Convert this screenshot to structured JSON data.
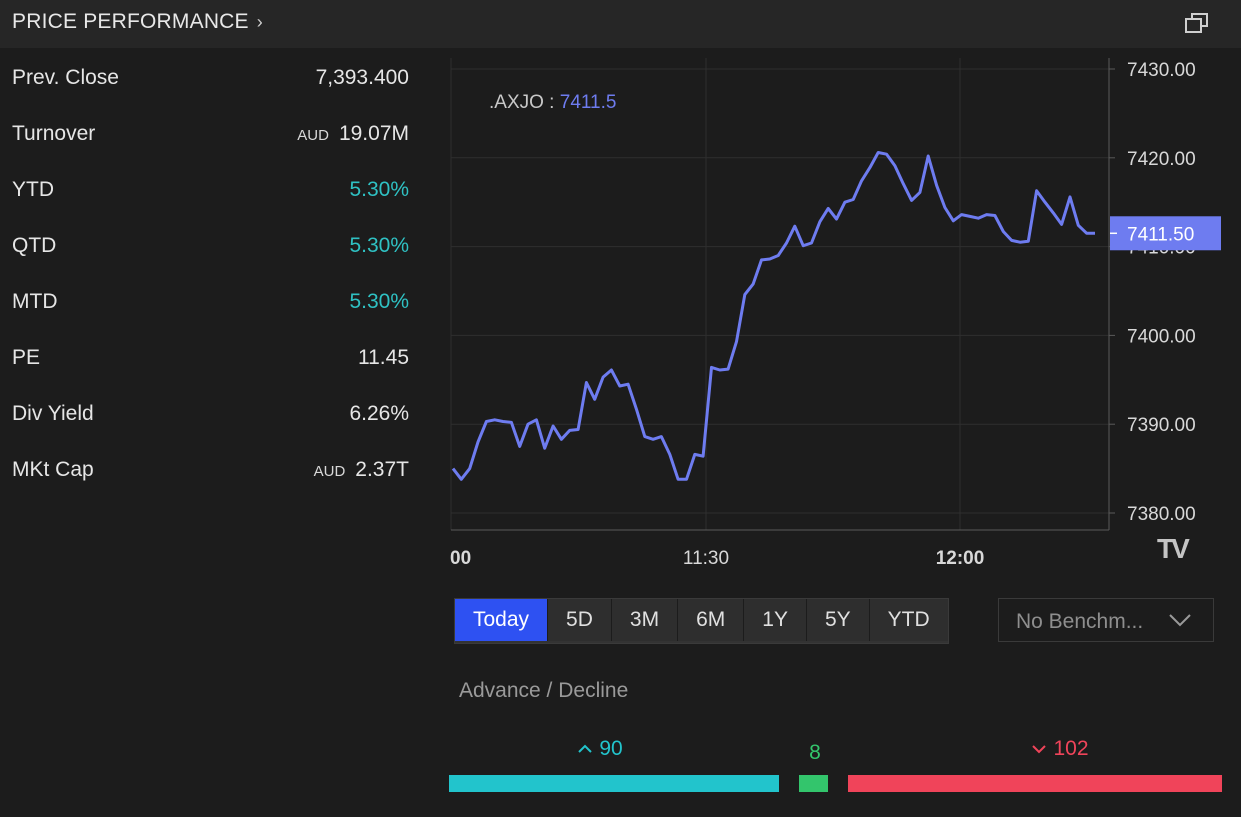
{
  "header": {
    "title": "PRICE PERFORMANCE",
    "chevron_icon": "chevron-right-icon",
    "popout_icon": "popout-window-icon"
  },
  "stats": [
    {
      "label": "Prev. Close",
      "value": "7,393.400",
      "currency": "",
      "positive": false
    },
    {
      "label": "Turnover",
      "value": "19.07M",
      "currency": "AUD",
      "positive": false
    },
    {
      "label": "YTD",
      "value": "5.30%",
      "currency": "",
      "positive": true
    },
    {
      "label": "QTD",
      "value": "5.30%",
      "currency": "",
      "positive": true
    },
    {
      "label": "MTD",
      "value": "5.30%",
      "currency": "",
      "positive": true
    },
    {
      "label": "PE",
      "value": "11.45",
      "currency": "",
      "positive": false
    },
    {
      "label": "Div Yield",
      "value": "6.26%",
      "currency": "",
      "positive": false
    },
    {
      "label": "MKt Cap",
      "value": "2.37T",
      "currency": "AUD",
      "positive": false
    }
  ],
  "chart": {
    "symbol": ".AXJO",
    "legend_value": "7411.5",
    "current_label": "7411.50",
    "watermark": "TV",
    "line_color": "#6e7cf0",
    "positive_color": "#2fc1c3"
  },
  "chart_data": {
    "type": "line",
    "x_ticks": [
      "00",
      "11:30",
      "12:00"
    ],
    "y_ticks": [
      "7430.00",
      "7420.00",
      "7410.00",
      "7400.00",
      "7390.00",
      "7380.00"
    ],
    "ylim": [
      7378,
      7431
    ],
    "xlim": [
      0,
      77
    ],
    "grid": true,
    "last_value": 7411.5,
    "series": [
      {
        "name": ".AXJO",
        "x": [
          0,
          1,
          2,
          3,
          4,
          5,
          6,
          7,
          8,
          9,
          10,
          11,
          12,
          13,
          14,
          15,
          16,
          17,
          18,
          19,
          20,
          21,
          22,
          23,
          24,
          25,
          26,
          27,
          28,
          29,
          30,
          31,
          32,
          33,
          34,
          35,
          36,
          37,
          38,
          39,
          40,
          41,
          42,
          43,
          44,
          45,
          46,
          47,
          48,
          49,
          50,
          51,
          52,
          53,
          54,
          55,
          56,
          57,
          58,
          59,
          60,
          61,
          62,
          63,
          64,
          65,
          66,
          67,
          68,
          69,
          70,
          71,
          72,
          73,
          74,
          75,
          76,
          77
        ],
        "y": [
          7385,
          7383.8,
          7385,
          7388,
          7390.3,
          7390.5,
          7390.3,
          7390.2,
          7387.5,
          7390,
          7390.5,
          7387.3,
          7389.8,
          7388.3,
          7389.3,
          7389.4,
          7394.7,
          7392.8,
          7395.3,
          7396.1,
          7394.3,
          7394.5,
          7391.7,
          7388.6,
          7388.3,
          7388.6,
          7386.6,
          7383.8,
          7383.8,
          7386.6,
          7386.4,
          7396.4,
          7396.1,
          7396.2,
          7399.3,
          7404.6,
          7405.8,
          7408.5,
          7408.6,
          7409,
          7410.4,
          7412.3,
          7410.1,
          7410.4,
          7412.8,
          7414.3,
          7413.1,
          7415,
          7415.3,
          7417.4,
          7418.9,
          7420.6,
          7420.4,
          7419.1,
          7417.1,
          7415.2,
          7416.1,
          7420.2,
          7416.9,
          7414.4,
          7412.9,
          7413.6,
          7413.4,
          7413.2,
          7413.6,
          7413.5,
          7411.7,
          7410.7,
          7410.5,
          7410.6,
          7416.3,
          7415,
          7413.8,
          7412.5,
          7415.6,
          7412.4,
          7411.5,
          7411.5
        ]
      }
    ]
  },
  "timeframes": [
    {
      "label": "Today",
      "active": true
    },
    {
      "label": "5D",
      "active": false
    },
    {
      "label": "3M",
      "active": false
    },
    {
      "label": "6M",
      "active": false
    },
    {
      "label": "1Y",
      "active": false
    },
    {
      "label": "5Y",
      "active": false
    },
    {
      "label": "YTD",
      "active": false
    }
  ],
  "benchmark": {
    "selected": "No Benchm...",
    "chevron_icon": "chevron-down-icon"
  },
  "advance_decline": {
    "title": "Advance / Decline",
    "advance": 90,
    "unchanged": 8,
    "decline": 102,
    "advance_color": "#22c4cc",
    "unchanged_color": "#33c56c",
    "decline_color": "#f0445a",
    "advance_icon": "caret-up-icon",
    "decline_icon": "caret-down-icon"
  }
}
